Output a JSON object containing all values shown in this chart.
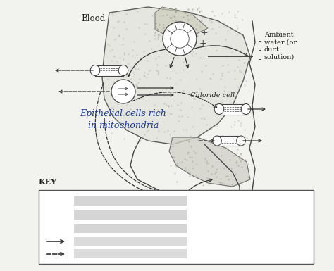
{
  "bg_color": "#f2f2ee",
  "text_color": "#222222",
  "diagram_color": "#444444",
  "arrow_color": "#333333",
  "epithelial_text_color": "#1a3a9a",
  "blood_label": "Blood",
  "ambient_label": "Ambient\nwater (or\nduct\nsolution)",
  "chloride_cell_label": "Chloride cell",
  "epithelial_label": "Epithelial cells rich\nin mitochondria",
  "key_label": "KEY",
  "plus_signs": [
    "+",
    "+"
  ],
  "minus_signs": [
    "-",
    "-",
    "-"
  ]
}
